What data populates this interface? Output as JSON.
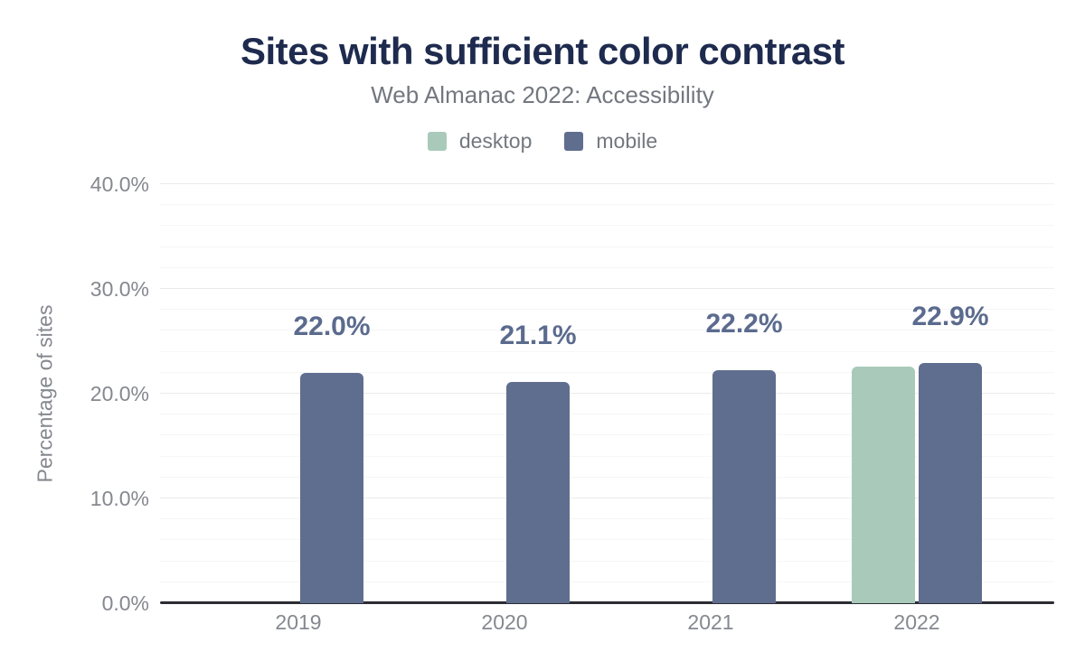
{
  "chart": {
    "title": "Sites with sufficient color contrast",
    "subtitle": "Web Almanac 2022: Accessibility"
  },
  "chart_data": {
    "type": "bar",
    "categories": [
      "2019",
      "2020",
      "2021",
      "2022"
    ],
    "series": [
      {
        "name": "desktop",
        "color": "#a9caba",
        "values": [
          null,
          null,
          null,
          22.6
        ]
      },
      {
        "name": "mobile",
        "color": "#5f6e8e",
        "values": [
          22.0,
          21.1,
          22.2,
          22.9
        ]
      }
    ],
    "bar_labels": [
      "22.0%",
      "21.1%",
      "22.2%",
      "22.9%"
    ],
    "title": "Sites with sufficient color contrast",
    "subtitle": "Web Almanac 2022: Accessibility",
    "xlabel": "",
    "ylabel": "Percentage of sites",
    "ylim": [
      0,
      40
    ],
    "y_ticks": [
      "0.0%",
      "10.0%",
      "20.0%",
      "30.0%",
      "40.0%"
    ],
    "y_tick_values": [
      0,
      10,
      20,
      30,
      40
    ],
    "minor_grid_step": 2,
    "grid": true,
    "legend_position": "top"
  },
  "colors": {
    "title_text": "#1e2b4e",
    "subtitle_text": "#73777f",
    "tick_text": "#85888f",
    "data_label_text": "#5b6b8e",
    "axis_line": "#2c2c33",
    "grid_major": "#eaeaec",
    "grid_minor": "#f6f6f7",
    "desktop_bar": "#a9caba",
    "mobile_bar": "#5f6e8e"
  }
}
